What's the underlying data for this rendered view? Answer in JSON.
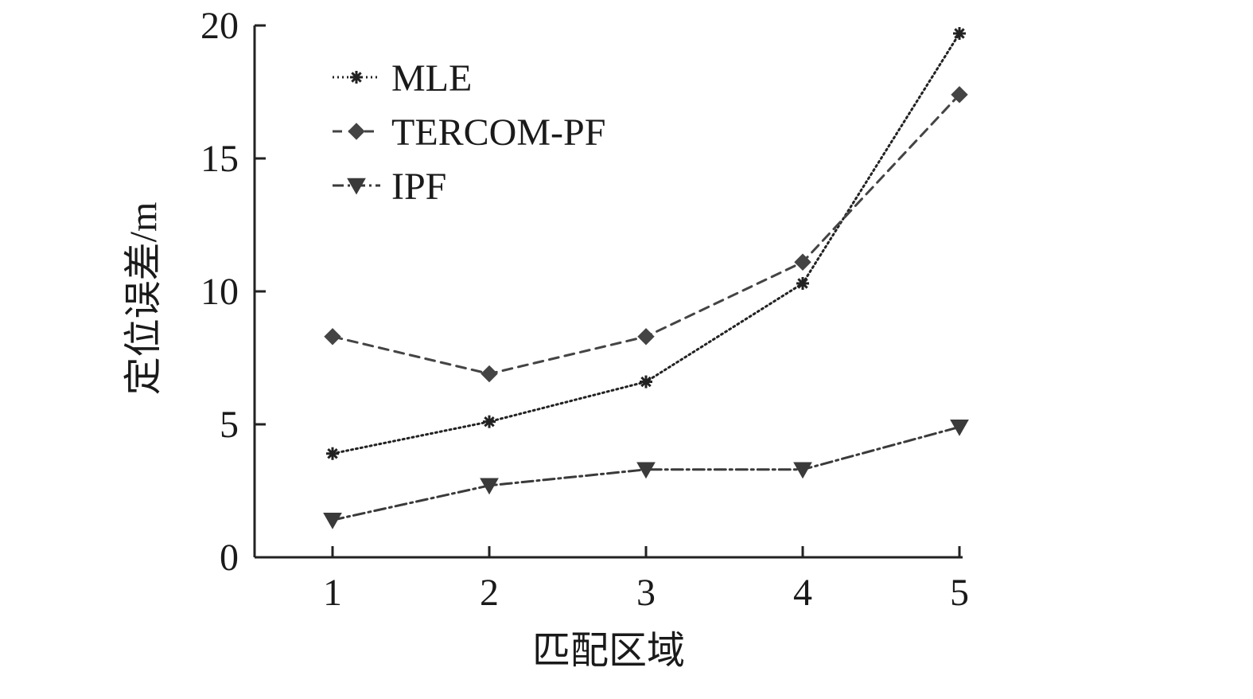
{
  "chart_data": {
    "type": "line",
    "title": "",
    "xlabel": "匹配区域",
    "ylabel": "定位误差/m",
    "categories": [
      "1",
      "2",
      "3",
      "4",
      "5"
    ],
    "ylim": [
      0,
      20
    ],
    "yticks": [
      "0",
      "5",
      "10",
      "15",
      "20"
    ],
    "grid": false,
    "legend_position": "top-left",
    "series": [
      {
        "name": "MLE",
        "values": [
          3.9,
          5.1,
          6.6,
          10.3,
          19.7
        ],
        "marker": "asterisk",
        "dash": "dotted",
        "color": "#222222"
      },
      {
        "name": "TERCOM-PF",
        "values": [
          8.3,
          6.9,
          8.3,
          11.1,
          17.4
        ],
        "marker": "diamond",
        "dash": "dashed",
        "color": "#444444"
      },
      {
        "name": "IPF",
        "values": [
          1.4,
          2.7,
          3.3,
          3.3,
          4.9
        ],
        "marker": "triangle-down",
        "dash": "dash-dot",
        "color": "#3a3a3a"
      }
    ]
  }
}
